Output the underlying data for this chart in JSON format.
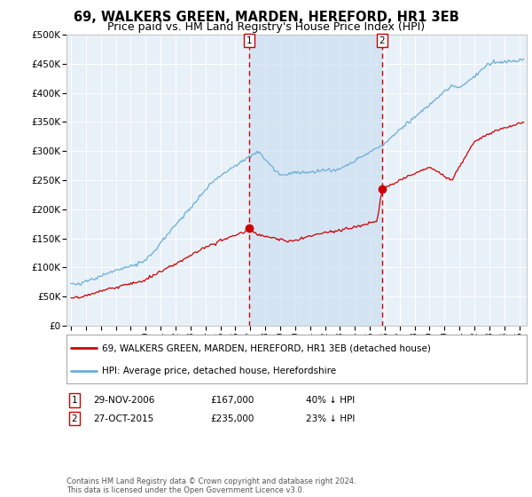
{
  "title": "69, WALKERS GREEN, MARDEN, HEREFORD, HR1 3EB",
  "subtitle": "Price paid vs. HM Land Registry's House Price Index (HPI)",
  "ylabel_ticks": [
    "£0",
    "£50K",
    "£100K",
    "£150K",
    "£200K",
    "£250K",
    "£300K",
    "£350K",
    "£400K",
    "£450K",
    "£500K"
  ],
  "ytick_values": [
    0,
    50000,
    100000,
    150000,
    200000,
    250000,
    300000,
    350000,
    400000,
    450000,
    500000
  ],
  "ylim": [
    0,
    500000
  ],
  "xlim_start": 1994.7,
  "xlim_end": 2025.5,
  "sale1_date": 2006.91,
  "sale1_price": 167000,
  "sale1_label": "29-NOV-2006",
  "sale1_pct": "40% ↓ HPI",
  "sale2_date": 2015.83,
  "sale2_price": 235000,
  "sale2_label": "27-OCT-2015",
  "sale2_pct": "23% ↓ HPI",
  "line_color_hpi": "#6baed6",
  "line_color_price": "#cc0000",
  "vline_color": "#cc0000",
  "shade_color": "#dce9f5",
  "plot_bg_color": "#e8f0f8",
  "grid_color": "white",
  "legend_label_price": "69, WALKERS GREEN, MARDEN, HEREFORD, HR1 3EB (detached house)",
  "legend_label_hpi": "HPI: Average price, detached house, Herefordshire",
  "footer": "Contains HM Land Registry data © Crown copyright and database right 2024.\nThis data is licensed under the Open Government Licence v3.0.",
  "title_fontsize": 10.5,
  "subtitle_fontsize": 9
}
